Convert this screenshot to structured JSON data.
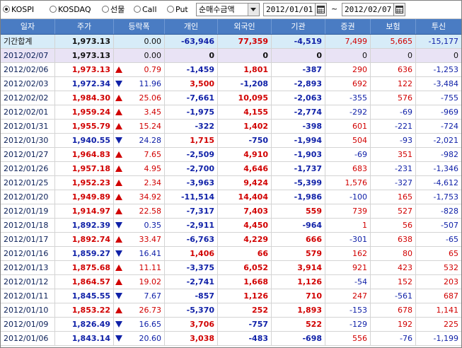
{
  "toolbar": {
    "markets": [
      {
        "label": "KOSPI",
        "selected": true
      },
      {
        "label": "KOSDAQ",
        "selected": false
      },
      {
        "label": "선물",
        "selected": false
      },
      {
        "label": "Call",
        "selected": false
      },
      {
        "label": "Put",
        "selected": false
      }
    ],
    "mode_select": "순매수금액",
    "date_from": "2012/01/01",
    "date_sep": "~",
    "date_to": "2012/02/07"
  },
  "table": {
    "headers": [
      "일자",
      "주가",
      "등락폭",
      "개인",
      "외국인",
      "기관",
      "증권",
      "보험",
      "투신"
    ],
    "summary": {
      "label": "기간합계",
      "price": "1,973.13",
      "change": "0.00",
      "personal": "-63,946",
      "foreign": "77,359",
      "institution": "-4,519",
      "securities": "7,499",
      "insurance": "5,665",
      "investment_trust": "-15,177"
    },
    "rows": [
      {
        "date": "2012/02/07",
        "price": "1,973.13",
        "dir": "none",
        "change": "0.00",
        "personal": "0",
        "foreign": "0",
        "institution": "0",
        "securities": "0",
        "insurance": "0",
        "investment_trust": "0"
      },
      {
        "date": "2012/02/06",
        "price": "1,973.13",
        "dir": "up",
        "change": "0.79",
        "personal": "-1,459",
        "foreign": "1,801",
        "institution": "-387",
        "securities": "290",
        "insurance": "636",
        "investment_trust": "-1,253"
      },
      {
        "date": "2012/02/03",
        "price": "1,972.34",
        "dir": "down",
        "change": "11.96",
        "personal": "3,500",
        "foreign": "-1,208",
        "institution": "-2,893",
        "securities": "692",
        "insurance": "122",
        "investment_trust": "-3,484"
      },
      {
        "date": "2012/02/02",
        "price": "1,984.30",
        "dir": "up",
        "change": "25.06",
        "personal": "-7,661",
        "foreign": "10,095",
        "institution": "-2,063",
        "securities": "-355",
        "insurance": "576",
        "investment_trust": "-755"
      },
      {
        "date": "2012/02/01",
        "price": "1,959.24",
        "dir": "up",
        "change": "3.45",
        "personal": "-1,975",
        "foreign": "4,155",
        "institution": "-2,774",
        "securities": "-292",
        "insurance": "-69",
        "investment_trust": "-969"
      },
      {
        "date": "2012/01/31",
        "price": "1,955.79",
        "dir": "up",
        "change": "15.24",
        "personal": "-322",
        "foreign": "1,402",
        "institution": "-398",
        "securities": "601",
        "insurance": "-221",
        "investment_trust": "-724"
      },
      {
        "date": "2012/01/30",
        "price": "1,940.55",
        "dir": "down",
        "change": "24.28",
        "personal": "1,715",
        "foreign": "-750",
        "institution": "-1,994",
        "securities": "504",
        "insurance": "-93",
        "investment_trust": "-2,021"
      },
      {
        "date": "2012/01/27",
        "price": "1,964.83",
        "dir": "up",
        "change": "7.65",
        "personal": "-2,509",
        "foreign": "4,910",
        "institution": "-1,903",
        "securities": "-69",
        "insurance": "351",
        "investment_trust": "-982"
      },
      {
        "date": "2012/01/26",
        "price": "1,957.18",
        "dir": "up",
        "change": "4.95",
        "personal": "-2,700",
        "foreign": "4,646",
        "institution": "-1,737",
        "securities": "683",
        "insurance": "-231",
        "investment_trust": "-1,346"
      },
      {
        "date": "2012/01/25",
        "price": "1,952.23",
        "dir": "up",
        "change": "2.34",
        "personal": "-3,963",
        "foreign": "9,424",
        "institution": "-5,399",
        "securities": "1,576",
        "insurance": "-327",
        "investment_trust": "-4,612"
      },
      {
        "date": "2012/01/20",
        "price": "1,949.89",
        "dir": "up",
        "change": "34.92",
        "personal": "-11,514",
        "foreign": "14,404",
        "institution": "-1,986",
        "securities": "-100",
        "insurance": "165",
        "investment_trust": "-1,753"
      },
      {
        "date": "2012/01/19",
        "price": "1,914.97",
        "dir": "up",
        "change": "22.58",
        "personal": "-7,317",
        "foreign": "7,403",
        "institution": "559",
        "securities": "739",
        "insurance": "527",
        "investment_trust": "-828"
      },
      {
        "date": "2012/01/18",
        "price": "1,892.39",
        "dir": "down",
        "change": "0.35",
        "personal": "-2,911",
        "foreign": "4,450",
        "institution": "-964",
        "securities": "1",
        "insurance": "56",
        "investment_trust": "-507"
      },
      {
        "date": "2012/01/17",
        "price": "1,892.74",
        "dir": "up",
        "change": "33.47",
        "personal": "-6,763",
        "foreign": "4,229",
        "institution": "666",
        "securities": "-301",
        "insurance": "638",
        "investment_trust": "-65"
      },
      {
        "date": "2012/01/16",
        "price": "1,859.27",
        "dir": "down",
        "change": "16.41",
        "personal": "1,406",
        "foreign": "66",
        "institution": "579",
        "securities": "162",
        "insurance": "80",
        "investment_trust": "65"
      },
      {
        "date": "2012/01/13",
        "price": "1,875.68",
        "dir": "up",
        "change": "11.11",
        "personal": "-3,375",
        "foreign": "6,052",
        "institution": "3,914",
        "securities": "921",
        "insurance": "423",
        "investment_trust": "532"
      },
      {
        "date": "2012/01/12",
        "price": "1,864.57",
        "dir": "up",
        "change": "19.02",
        "personal": "-2,741",
        "foreign": "1,668",
        "institution": "1,126",
        "securities": "-54",
        "insurance": "152",
        "investment_trust": "203"
      },
      {
        "date": "2012/01/11",
        "price": "1,845.55",
        "dir": "down",
        "change": "7.67",
        "personal": "-857",
        "foreign": "1,126",
        "institution": "710",
        "securities": "247",
        "insurance": "-561",
        "investment_trust": "687"
      },
      {
        "date": "2012/01/10",
        "price": "1,853.22",
        "dir": "up",
        "change": "26.73",
        "personal": "-5,370",
        "foreign": "252",
        "institution": "1,893",
        "securities": "-153",
        "insurance": "678",
        "investment_trust": "1,141"
      },
      {
        "date": "2012/01/09",
        "price": "1,826.49",
        "dir": "down",
        "change": "16.65",
        "personal": "3,706",
        "foreign": "-757",
        "institution": "522",
        "securities": "-129",
        "insurance": "192",
        "investment_trust": "225"
      },
      {
        "date": "2012/01/06",
        "price": "1,843.14",
        "dir": "down",
        "change": "20.60",
        "personal": "3,038",
        "foreign": "-483",
        "institution": "-698",
        "securities": "556",
        "insurance": "-76",
        "investment_trust": "-1,199"
      }
    ]
  },
  "colors": {
    "header_bg": "#4a7cc3",
    "up": "#d10000",
    "down": "#1021a8",
    "summary_bg": "#d7ecf8",
    "today_bg": "#e9e3f5"
  },
  "icons": {
    "calendar": "calendar-icon",
    "dropdown": "chevron-down-icon"
  }
}
